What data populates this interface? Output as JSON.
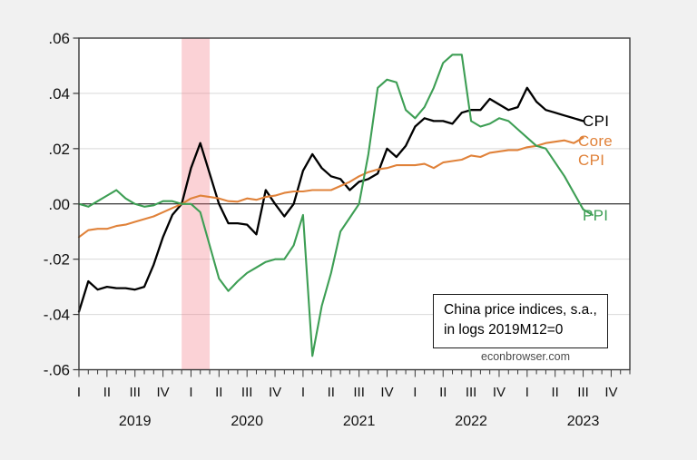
{
  "chart_data": {
    "type": "line",
    "title_box": [
      "China price indices, s.a.,",
      "in logs 2019M12=0"
    ],
    "watermark": "econbrowser.com",
    "x_start": "2019M1",
    "months": 60,
    "ylim": [
      -0.06,
      0.06
    ],
    "ytick_labels": [
      ".06",
      ".04",
      ".02",
      ".00",
      "-.02",
      "-.04",
      "-.06"
    ],
    "ytick_values": [
      0.06,
      0.04,
      0.02,
      0.0,
      -0.02,
      -0.04,
      -0.06
    ],
    "quarter_labels": [
      "I",
      "II",
      "III",
      "IV"
    ],
    "year_labels": [
      "2019",
      "2020",
      "2021",
      "2022",
      "2023"
    ],
    "grid_color": "#d9d9d9",
    "axis_color": "#383838",
    "plot_bg": "#ffffff",
    "recession_band": {
      "start_month_index": 11,
      "end_month_index": 14,
      "color": "rgba(244,114,126,0.32)"
    },
    "series": [
      {
        "name": "CPI",
        "label_lines": [
          "CPI"
        ],
        "color": "#000000",
        "width": 2.3,
        "values": [
          -0.039,
          -0.028,
          -0.031,
          -0.03,
          -0.0305,
          -0.0305,
          -0.031,
          -0.03,
          -0.022,
          -0.012,
          -0.004,
          0.0,
          0.013,
          0.022,
          0.011,
          0.0,
          -0.007,
          -0.007,
          -0.0075,
          -0.011,
          0.005,
          0.0,
          -0.0045,
          0.0,
          0.012,
          0.018,
          0.013,
          0.01,
          0.009,
          0.005,
          0.008,
          0.009,
          0.011,
          0.02,
          0.017,
          0.021,
          0.028,
          0.031,
          0.03,
          0.03,
          0.029,
          0.033,
          0.034,
          0.034,
          0.038,
          0.036,
          0.034,
          0.035,
          0.042,
          0.037,
          0.034,
          0.033,
          0.032,
          0.031,
          0.03
        ]
      },
      {
        "name": "Core CPI",
        "label_lines": [
          "Core",
          "CPI"
        ],
        "color": "#e0823a",
        "width": 2.1,
        "values": [
          -0.012,
          -0.0095,
          -0.009,
          -0.009,
          -0.008,
          -0.0075,
          -0.0065,
          -0.0055,
          -0.0045,
          -0.003,
          -0.0015,
          0.0,
          0.002,
          0.003,
          0.0025,
          0.002,
          0.001,
          0.0008,
          0.002,
          0.0015,
          0.0025,
          0.003,
          0.004,
          0.0045,
          0.0045,
          0.005,
          0.005,
          0.005,
          0.0065,
          0.008,
          0.01,
          0.0115,
          0.0125,
          0.013,
          0.014,
          0.014,
          0.014,
          0.0145,
          0.013,
          0.015,
          0.0155,
          0.016,
          0.0175,
          0.017,
          0.0185,
          0.019,
          0.0195,
          0.0195,
          0.0205,
          0.021,
          0.022,
          0.0225,
          0.023,
          0.022,
          0.024
        ]
      },
      {
        "name": "PPI",
        "label_lines": [
          "PPI"
        ],
        "color": "#3d9e54",
        "width": 2.1,
        "values": [
          0.0,
          -0.001,
          0.001,
          0.003,
          0.005,
          0.002,
          0.0,
          -0.001,
          -0.0005,
          0.001,
          0.001,
          0.0,
          0.0,
          -0.003,
          -0.015,
          -0.027,
          -0.0315,
          -0.028,
          -0.025,
          -0.023,
          -0.021,
          -0.02,
          -0.02,
          -0.015,
          -0.004,
          -0.055,
          -0.037,
          -0.025,
          -0.01,
          -0.005,
          0.0,
          0.018,
          0.042,
          0.045,
          0.044,
          0.034,
          0.031,
          0.035,
          0.042,
          0.051,
          0.054,
          0.054,
          0.03,
          0.028,
          0.029,
          0.031,
          0.03,
          0.027,
          0.024,
          0.021,
          0.02,
          0.015,
          0.01,
          0.004,
          -0.002,
          -0.004
        ]
      }
    ]
  }
}
